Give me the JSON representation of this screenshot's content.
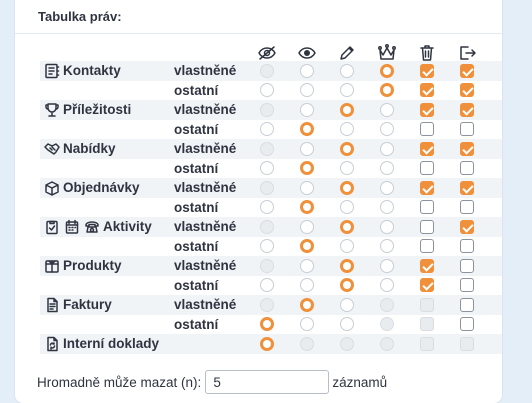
{
  "title": "Tabulka práv:",
  "colors": {
    "accent": "#f0903a",
    "text": "#2f3440"
  },
  "columns": [
    {
      "name": "hidden",
      "icon": "eye-slash-icon"
    },
    {
      "name": "view",
      "icon": "eye-icon"
    },
    {
      "name": "edit",
      "icon": "pencil-icon"
    },
    {
      "name": "owner",
      "icon": "crown-icon"
    },
    {
      "name": "delete",
      "icon": "trash-icon"
    },
    {
      "name": "export",
      "icon": "export-icon"
    }
  ],
  "entities": [
    {
      "key": "kontakty",
      "label": "Kontakty",
      "icons": [
        "contacts-icon"
      ],
      "rows": [
        {
          "scope": "vlastněné",
          "radio": [
            0,
            0,
            0,
            1
          ],
          "radioDisabled": [
            1,
            0,
            0,
            0
          ],
          "delete": "checked",
          "export": "checked"
        },
        {
          "scope": "ostatní",
          "radio": [
            0,
            0,
            0,
            1
          ],
          "radioDisabled": [
            0,
            0,
            0,
            0
          ],
          "delete": "checked",
          "export": "checked"
        }
      ]
    },
    {
      "key": "prilezitosti",
      "label": "Příležitosti",
      "icons": [
        "trophy-icon"
      ],
      "rows": [
        {
          "scope": "vlastněné",
          "radio": [
            0,
            0,
            1,
            0
          ],
          "radioDisabled": [
            1,
            0,
            0,
            0
          ],
          "delete": "checked",
          "export": "checked"
        },
        {
          "scope": "ostatní",
          "radio": [
            0,
            1,
            0,
            0
          ],
          "radioDisabled": [
            0,
            0,
            0,
            0
          ],
          "delete": "unchecked",
          "export": "unchecked"
        }
      ]
    },
    {
      "key": "nabidky",
      "label": "Nabídky",
      "icons": [
        "handshake-icon"
      ],
      "rows": [
        {
          "scope": "vlastněné",
          "radio": [
            0,
            0,
            1,
            0
          ],
          "radioDisabled": [
            1,
            0,
            0,
            0
          ],
          "delete": "checked",
          "export": "checked"
        },
        {
          "scope": "ostatní",
          "radio": [
            0,
            1,
            0,
            0
          ],
          "radioDisabled": [
            0,
            0,
            0,
            0
          ],
          "delete": "unchecked",
          "export": "unchecked"
        }
      ]
    },
    {
      "key": "objednavky",
      "label": "Objednávky",
      "icons": [
        "box-icon"
      ],
      "rows": [
        {
          "scope": "vlastněné",
          "radio": [
            0,
            0,
            1,
            0
          ],
          "radioDisabled": [
            1,
            0,
            0,
            0
          ],
          "delete": "checked",
          "export": "checked"
        },
        {
          "scope": "ostatní",
          "radio": [
            0,
            1,
            0,
            0
          ],
          "radioDisabled": [
            0,
            0,
            0,
            0
          ],
          "delete": "unchecked",
          "export": "unchecked"
        }
      ]
    },
    {
      "key": "aktivity",
      "label": "Aktivity",
      "icons": [
        "clipboard-check-icon",
        "calendar-icon",
        "phone-icon"
      ],
      "rows": [
        {
          "scope": "vlastněné",
          "radio": [
            0,
            0,
            1,
            0
          ],
          "radioDisabled": [
            1,
            0,
            0,
            0
          ],
          "delete": "unchecked",
          "export": "checked"
        },
        {
          "scope": "ostatní",
          "radio": [
            0,
            1,
            0,
            0
          ],
          "radioDisabled": [
            0,
            0,
            0,
            0
          ],
          "delete": "unchecked",
          "export": "unchecked"
        }
      ]
    },
    {
      "key": "produkty",
      "label": "Produkty",
      "icons": [
        "package-icon"
      ],
      "rows": [
        {
          "scope": "vlastněné",
          "radio": [
            0,
            0,
            1,
            0
          ],
          "radioDisabled": [
            1,
            0,
            0,
            0
          ],
          "delete": "checked",
          "export": "unchecked"
        },
        {
          "scope": "ostatní",
          "radio": [
            0,
            0,
            1,
            0
          ],
          "radioDisabled": [
            0,
            0,
            0,
            0
          ],
          "delete": "checked",
          "export": "unchecked"
        }
      ]
    },
    {
      "key": "faktury",
      "label": "Faktury",
      "icons": [
        "invoice-icon"
      ],
      "rows": [
        {
          "scope": "vlastněné",
          "radio": [
            0,
            1,
            0,
            0
          ],
          "radioDisabled": [
            1,
            0,
            0,
            1
          ],
          "delete": "disabled",
          "export": "unchecked"
        },
        {
          "scope": "ostatní",
          "radio": [
            1,
            0,
            0,
            0
          ],
          "radioDisabled": [
            0,
            0,
            0,
            1
          ],
          "delete": "disabled",
          "export": "unchecked"
        }
      ]
    },
    {
      "key": "interni-doklady",
      "label": "Interní doklady",
      "icons": [
        "document-sync-icon"
      ],
      "rows": [
        {
          "scope": "",
          "radio": [
            1,
            0,
            0,
            0
          ],
          "radioDisabled": [
            0,
            1,
            1,
            1
          ],
          "delete": "disabled",
          "export": "disabled"
        }
      ]
    }
  ],
  "mass_delete": {
    "label": "Hromadně může mazat (n):",
    "value": "5",
    "suffix": "záznamů"
  }
}
